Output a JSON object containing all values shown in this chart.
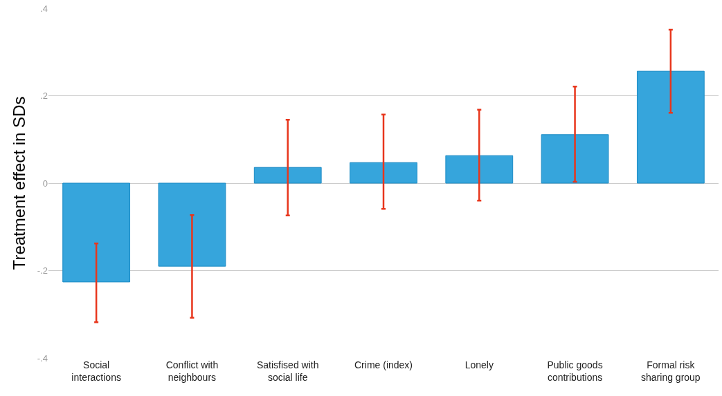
{
  "chart_data": {
    "type": "bar",
    "ylabel": "Treatment effect in SDs",
    "categories": [
      "Social interactions",
      "Conflict with neighbours",
      "Satisfised with social life",
      "Crime (index)",
      "Lonely",
      "Public goods contributions",
      "Formal risk sharing group"
    ],
    "values": [
      -0.226,
      -0.19,
      0.036,
      0.047,
      0.063,
      0.111,
      0.256
    ],
    "errors": [
      [
        -0.318,
        -0.138
      ],
      [
        -0.308,
        -0.073
      ],
      [
        -0.074,
        0.145
      ],
      [
        -0.059,
        0.157
      ],
      [
        -0.04,
        0.168
      ],
      [
        0.003,
        0.221
      ],
      [
        0.161,
        0.351
      ]
    ],
    "color": "#36a5dc",
    "ylim": [
      -0.4,
      0.4
    ],
    "yticks": [
      {
        "value": -0.4,
        "label": "-.4"
      },
      {
        "value": -0.2,
        "label": "-.2"
      },
      0,
      {
        "value": 0.2,
        "label": ".2"
      },
      {
        "value": 0.4,
        "label": ".4"
      }
    ],
    "grid": "y"
  }
}
